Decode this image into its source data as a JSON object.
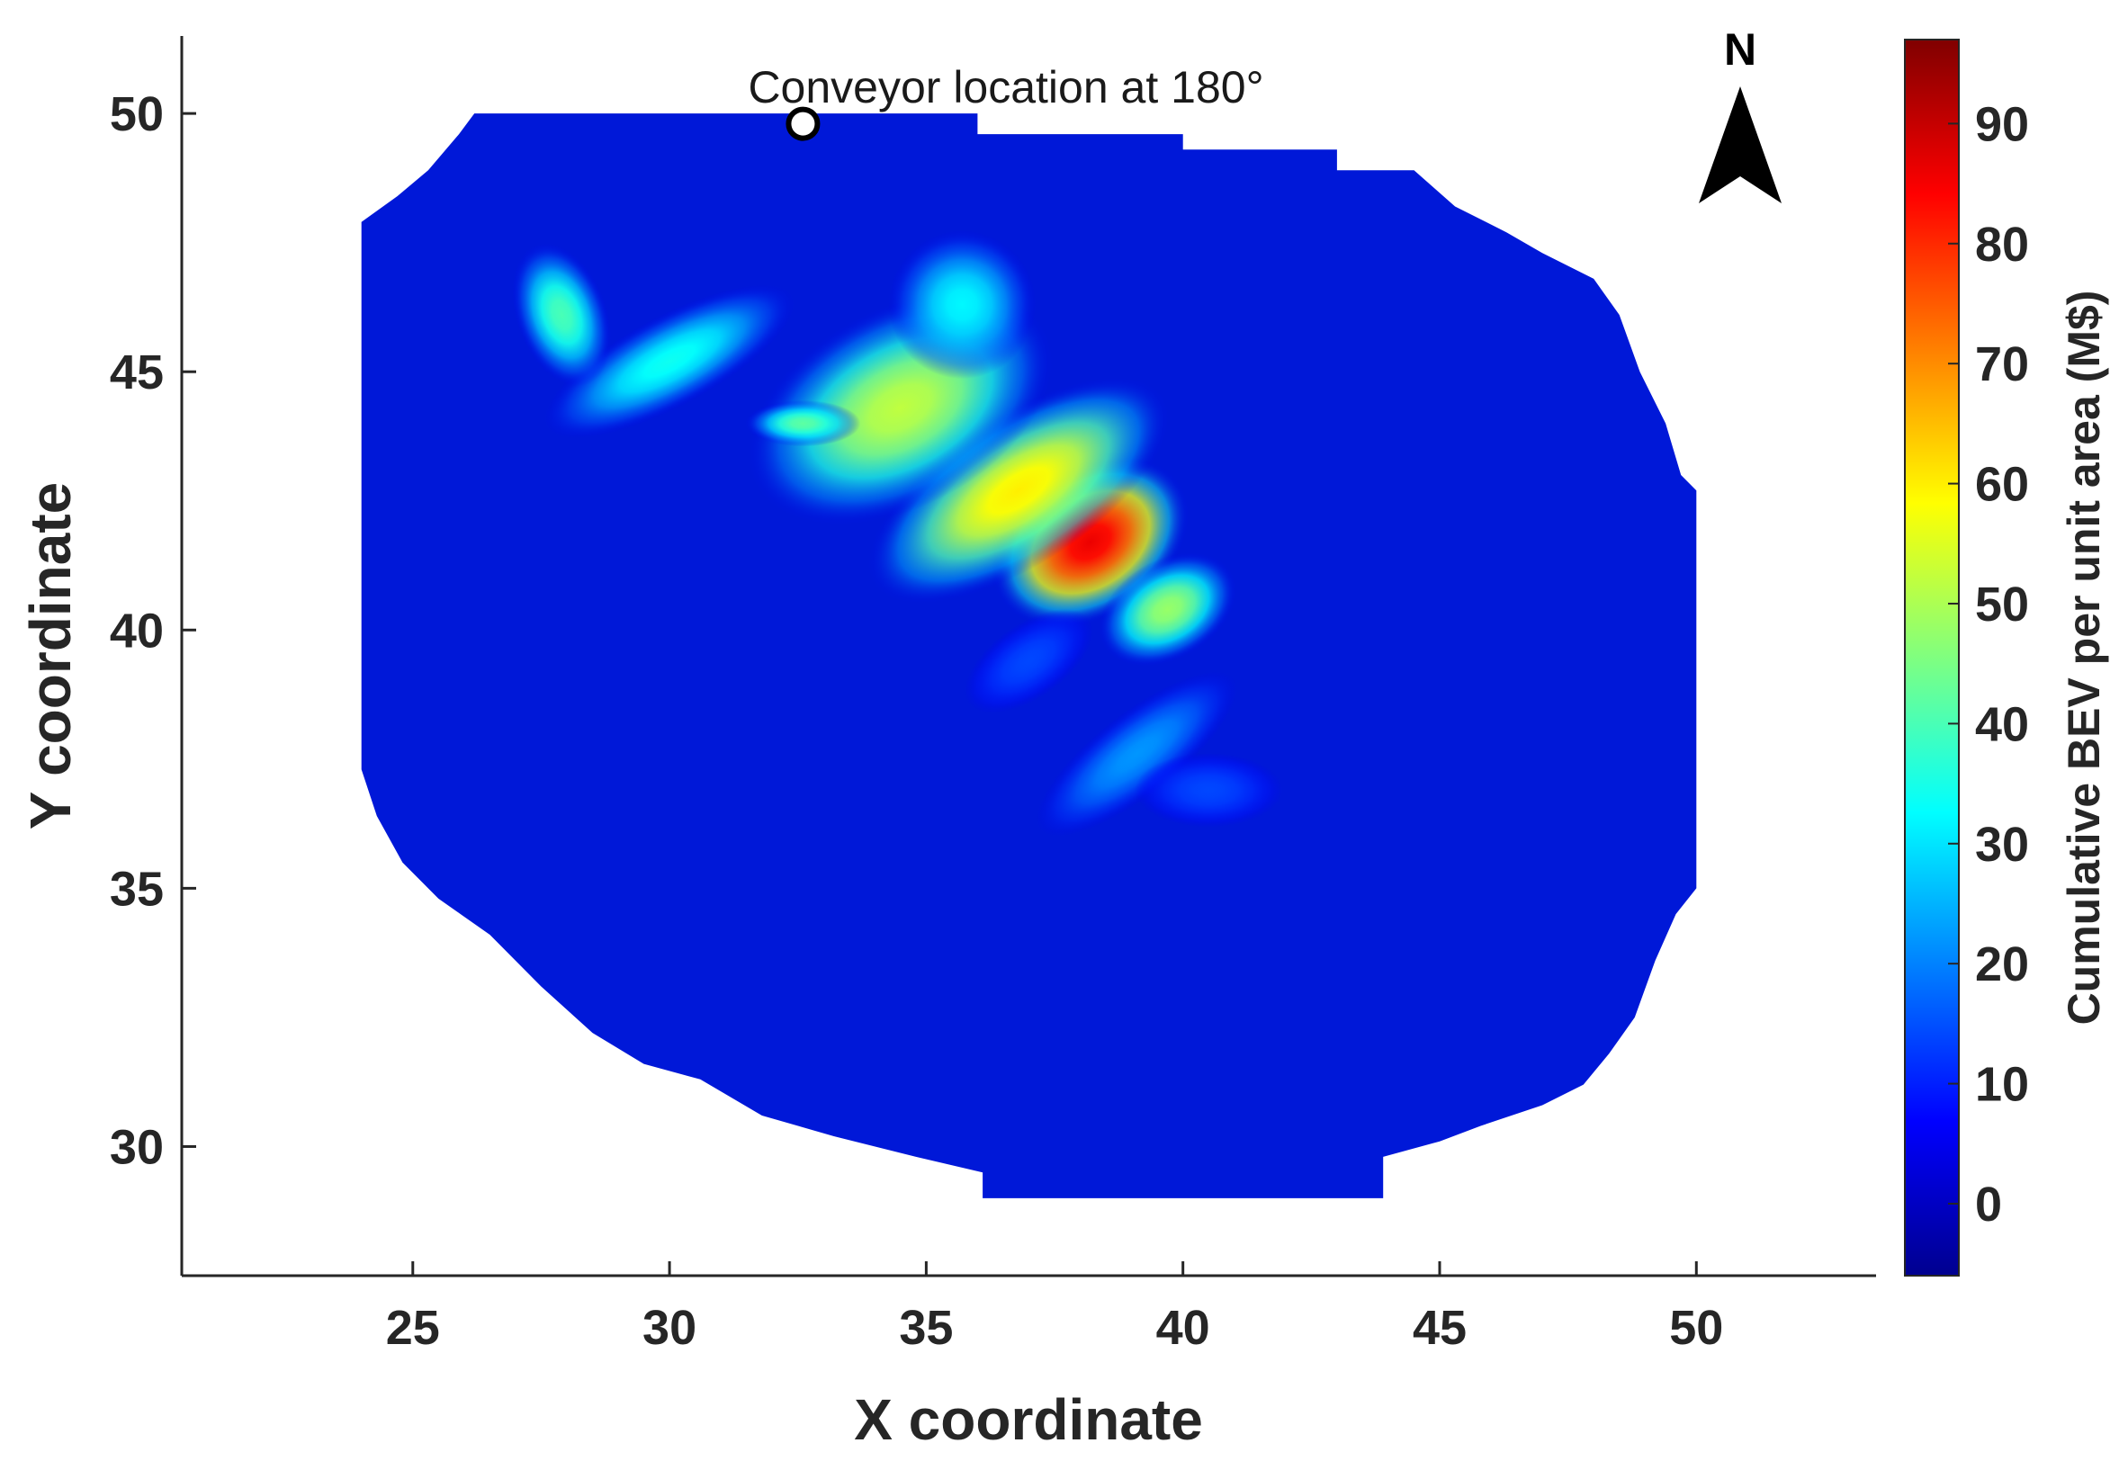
{
  "chart_data": {
    "type": "heatmap",
    "title": "",
    "xlabel": "X coordinate",
    "ylabel": "Y coordinate",
    "xlim": [
      20.5,
      53.5
    ],
    "ylim": [
      27.5,
      51.5
    ],
    "xticks": [
      25,
      30,
      35,
      40,
      45,
      50
    ],
    "yticks": [
      30,
      35,
      40,
      45,
      50
    ],
    "grid": false,
    "colormap": "jet",
    "colorbar": {
      "label": "Cumulative BEV per unit area (M$)",
      "range": [
        -6,
        97
      ],
      "ticks": [
        0,
        10,
        20,
        30,
        40,
        50,
        60,
        70,
        80,
        90
      ]
    },
    "domain_boundary": [
      [
        26.2,
        50
      ],
      [
        36,
        50
      ],
      [
        36,
        49.6
      ],
      [
        40,
        49.6
      ],
      [
        40,
        49.3
      ],
      [
        43,
        49.3
      ],
      [
        43,
        48.9
      ],
      [
        44.5,
        48.9
      ],
      [
        45.3,
        48.2
      ],
      [
        46.3,
        47.7
      ],
      [
        47,
        47.3
      ],
      [
        48,
        46.8
      ],
      [
        48.5,
        46.1
      ],
      [
        48.9,
        45
      ],
      [
        49.4,
        44
      ],
      [
        49.7,
        43
      ],
      [
        50,
        42.7
      ],
      [
        50,
        35
      ],
      [
        49.6,
        34.5
      ],
      [
        49.2,
        33.6
      ],
      [
        48.8,
        32.5
      ],
      [
        48.3,
        31.8
      ],
      [
        47.8,
        31.2
      ],
      [
        47,
        30.8
      ],
      [
        45.8,
        30.4
      ],
      [
        45,
        30.1
      ],
      [
        43.9,
        29.8
      ],
      [
        43.9,
        29
      ],
      [
        36.1,
        29
      ],
      [
        36.1,
        29.5
      ],
      [
        34.8,
        29.8
      ],
      [
        33.2,
        30.2
      ],
      [
        31.8,
        30.6
      ],
      [
        30.6,
        31.3
      ],
      [
        29.5,
        31.6
      ],
      [
        28.5,
        32.2
      ],
      [
        27.5,
        33.1
      ],
      [
        26.5,
        34.1
      ],
      [
        25.5,
        34.8
      ],
      [
        24.8,
        35.5
      ],
      [
        24.3,
        36.4
      ],
      [
        24,
        37.3
      ],
      [
        24,
        47.9
      ],
      [
        24.7,
        48.4
      ],
      [
        25.3,
        48.9
      ],
      [
        25.9,
        49.6
      ]
    ],
    "hotspots": [
      {
        "x": 38.2,
        "y": 41.7,
        "sx": 1.3,
        "sy": 0.9,
        "rot": -33,
        "value": 86
      },
      {
        "x": 36.8,
        "y": 42.7,
        "sx": 2.1,
        "sy": 0.9,
        "rot": -33,
        "value": 60
      },
      {
        "x": 34.5,
        "y": 44.3,
        "sx": 2.0,
        "sy": 1.2,
        "rot": -28,
        "value": 52
      },
      {
        "x": 35.7,
        "y": 46.3,
        "sx": 0.9,
        "sy": 0.9,
        "rot": 0,
        "value": 32
      },
      {
        "x": 32.6,
        "y": 44.0,
        "sx": 0.7,
        "sy": 0.28,
        "rot": 0,
        "value": 42
      },
      {
        "x": 30.0,
        "y": 45.2,
        "sx": 1.7,
        "sy": 0.55,
        "rot": -28,
        "value": 34
      },
      {
        "x": 27.9,
        "y": 46.1,
        "sx": 0.55,
        "sy": 0.9,
        "rot": -20,
        "value": 40
      },
      {
        "x": 39.7,
        "y": 40.4,
        "sx": 0.9,
        "sy": 0.6,
        "rot": -30,
        "value": 48
      },
      {
        "x": 39.1,
        "y": 37.6,
        "sx": 1.5,
        "sy": 0.5,
        "rot": -38,
        "value": 22
      },
      {
        "x": 40.5,
        "y": 36.9,
        "sx": 0.9,
        "sy": 0.45,
        "rot": 0,
        "value": 14
      },
      {
        "x": 37.0,
        "y": 39.4,
        "sx": 0.9,
        "sy": 0.45,
        "rot": -35,
        "value": 14
      }
    ],
    "annotation": {
      "text": "Conveyor location at 180°",
      "x": 32.6,
      "y": 49.8
    },
    "north_arrow": {
      "label": "N"
    }
  }
}
